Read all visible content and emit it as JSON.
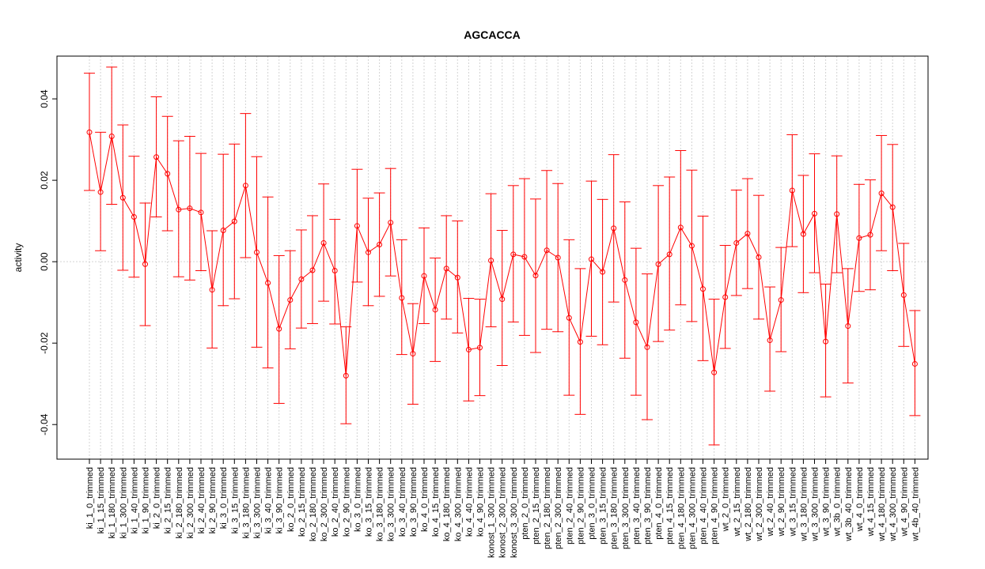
{
  "chart_data": {
    "type": "line",
    "title": "AGCACCA",
    "xlabel": "",
    "ylabel": "activity",
    "ylim": [
      -0.0485,
      0.0505
    ],
    "yticks": [
      -0.04,
      -0.02,
      0.0,
      0.02,
      0.04
    ],
    "ytick_labels": [
      "-0.04",
      "-0.02",
      "0.00",
      "0.02",
      "0.04"
    ],
    "grid": true,
    "reference_line": 0,
    "colors": {
      "series": "#ff0000",
      "grid": "#d3d3d3",
      "axis": "#000000"
    },
    "categories": [
      "ki_1_0_trimmed",
      "ki_1_15_trimmed",
      "ki_1_180_trimmed",
      "ki_1_300_trimmed",
      "ki_1_40_trimmed",
      "ki_1_90_trimmed",
      "ki_2_0_trimmed",
      "ki_2_15_trimmed",
      "ki_2_180_trimmed",
      "ki_2_300_trimmed",
      "ki_2_40_trimmed",
      "ki_2_90_trimmed",
      "ki_3_0_trimmed",
      "ki_3_15_trimmed",
      "ki_3_180_trimmed",
      "ki_3_300_trimmed",
      "ki_3_40_trimmed",
      "ki_3_90_trimmed",
      "ko_2_0_trimmed",
      "ko_2_15_trimmed",
      "ko_2_180_trimmed",
      "ko_2_300_trimmed",
      "ko_2_40_trimmed",
      "ko_2_90_trimmed",
      "ko_3_0_trimmed",
      "ko_3_15_trimmed",
      "ko_3_180_trimmed",
      "ko_3_300_trimmed",
      "ko_3_40_trimmed",
      "ko_3_90_trimmed",
      "ko_4_0_trimmed",
      "ko_4_15_trimmed",
      "ko_4_180_trimmed",
      "ko_4_300_trimmed",
      "ko_4_40_trimmed",
      "ko_4_90_trimmed",
      "konost_1_300_trimmed",
      "konost_2_300_trimmed",
      "konost_3_300_trimmed",
      "pten_2_0_trimmed",
      "pten_2_15_trimmed",
      "pten_2_180_trimmed",
      "pten_2_300_trimmed",
      "pten_2_40_trimmed",
      "pten_2_90_trimmed",
      "pten_3_0_trimmed",
      "pten_3_15_trimmed",
      "pten_3_180_trimmed",
      "pten_3_300_trimmed",
      "pten_3_40_trimmed",
      "pten_3_90_trimmed",
      "pten_4_0_trimmed",
      "pten_4_15_trimmed",
      "pten_4_180_trimmed",
      "pten_4_300_trimmed",
      "pten_4_40_trimmed",
      "pten_4_90_trimmed",
      "wt_2_0_trimmed",
      "wt_2_15_trimmed",
      "wt_2_180_trimmed",
      "wt_2_300_trimmed",
      "wt_2_40_trimmed",
      "wt_2_90_trimmed",
      "wt_3_15_trimmed",
      "wt_3_180_trimmed",
      "wt_3_300_trimmed",
      "wt_3_90_trimmed",
      "wt_3b_0_trimmed",
      "wt_3b_40_trimmed",
      "wt_4_0_trimmed",
      "wt_4_15_trimmed",
      "wt_4_180_trimmed",
      "wt_4_300_trimmed",
      "wt_4_90_trimmed",
      "wt_4b_40_trimmed"
    ],
    "series": [
      {
        "values": [
          0.0318,
          0.0171,
          0.0308,
          0.0157,
          0.011,
          -0.0006,
          0.0257,
          0.0216,
          0.0128,
          0.0131,
          0.0121,
          -0.0069,
          0.0077,
          0.0099,
          0.0187,
          0.0023,
          -0.0052,
          -0.0165,
          -0.0094,
          -0.0043,
          -0.0021,
          0.0046,
          -0.0022,
          -0.028,
          0.0088,
          0.0023,
          0.0042,
          0.0096,
          -0.0089,
          -0.0226,
          -0.0035,
          -0.0118,
          -0.0017,
          -0.0039,
          -0.0216,
          -0.0211,
          0.0003,
          -0.0092,
          0.0018,
          0.0012,
          -0.0034,
          0.0028,
          0.001,
          -0.0138,
          -0.0197,
          0.0006,
          -0.0025,
          0.0082,
          -0.0045,
          -0.0149,
          -0.021,
          -0.0006,
          0.0018,
          0.0084,
          0.0039,
          -0.0067,
          -0.0272,
          -0.0087,
          0.0046,
          0.0069,
          0.0011,
          -0.0193,
          -0.0094,
          0.0175,
          0.0068,
          0.0118,
          -0.0196,
          0.0117,
          -0.0158,
          0.0058,
          0.0066,
          0.0168,
          0.0134,
          -0.0082,
          -0.0251
        ],
        "lower": [
          0.0175,
          0.0027,
          0.0141,
          -0.0021,
          -0.0038,
          -0.0157,
          0.011,
          0.0076,
          -0.0037,
          -0.0045,
          -0.0022,
          -0.0212,
          -0.0108,
          -0.0091,
          0.001,
          -0.021,
          -0.0261,
          -0.0348,
          -0.0214,
          -0.0163,
          -0.0152,
          -0.0097,
          -0.0153,
          -0.0398,
          -0.005,
          -0.0108,
          -0.0085,
          -0.0035,
          -0.0228,
          -0.035,
          -0.0152,
          -0.0245,
          -0.0141,
          -0.0175,
          -0.0342,
          -0.0329,
          -0.016,
          -0.0255,
          -0.0148,
          -0.0181,
          -0.0223,
          -0.0166,
          -0.0172,
          -0.0328,
          -0.0375,
          -0.0183,
          -0.0204,
          -0.0099,
          -0.0237,
          -0.0328,
          -0.0388,
          -0.0196,
          -0.0168,
          -0.0106,
          -0.0147,
          -0.0243,
          -0.045,
          -0.0213,
          -0.0083,
          -0.0066,
          -0.0141,
          -0.0318,
          -0.0221,
          0.0037,
          -0.0076,
          -0.0027,
          -0.0332,
          -0.0027,
          -0.0298,
          -0.0073,
          -0.0069,
          0.0027,
          -0.0022,
          -0.0208,
          -0.0378
        ],
        "upper": [
          0.0463,
          0.0318,
          0.0478,
          0.0336,
          0.0259,
          0.0144,
          0.0405,
          0.0357,
          0.0297,
          0.0308,
          0.0266,
          0.0076,
          0.0264,
          0.0289,
          0.0364,
          0.0258,
          0.0159,
          0.0015,
          0.0027,
          0.0078,
          0.0113,
          0.0191,
          0.0104,
          -0.016,
          0.0227,
          0.0156,
          0.0169,
          0.0229,
          0.0054,
          -0.0103,
          0.0083,
          0.0009,
          0.0113,
          0.01,
          -0.009,
          -0.0092,
          0.0167,
          0.0077,
          0.0187,
          0.0204,
          0.0154,
          0.0224,
          0.0192,
          0.0054,
          -0.0017,
          0.0198,
          0.0153,
          0.0263,
          0.0147,
          0.0033,
          -0.003,
          0.0187,
          0.0208,
          0.0273,
          0.0225,
          0.0112,
          -0.0092,
          0.004,
          0.0176,
          0.0204,
          0.0163,
          -0.0062,
          0.0035,
          0.0312,
          0.0212,
          0.0265,
          -0.0055,
          0.026,
          -0.0017,
          0.019,
          0.0201,
          0.031,
          0.0288,
          0.0045,
          -0.012
        ]
      }
    ]
  }
}
